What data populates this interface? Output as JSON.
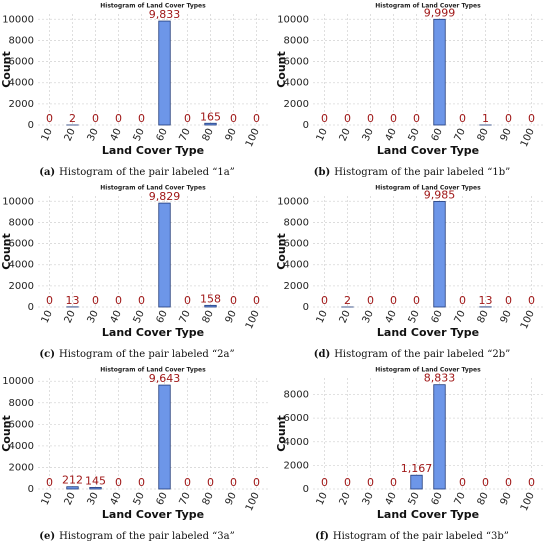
{
  "chart_data": [
    {
      "type": "bar",
      "title": "Histogram of Land Cover Types",
      "xlabel": "Land Cover Type",
      "ylabel": "Count",
      "categories": [
        "10",
        "20",
        "30",
        "40",
        "50",
        "60",
        "70",
        "80",
        "90",
        "100"
      ],
      "values": [
        0,
        2,
        0,
        0,
        0,
        9833,
        0,
        165,
        0,
        0
      ],
      "value_labels": [
        "0",
        "2",
        "0",
        "0",
        "0",
        "9,833",
        "0",
        "165",
        "0",
        "0"
      ],
      "ylim": [
        0,
        10500
      ],
      "yticks": [
        0,
        2000,
        4000,
        6000,
        8000,
        10000
      ],
      "grid": true,
      "color": "#6d96e8",
      "caption_label": "(a)",
      "caption": "Histogram of the pair labeled “1a”"
    },
    {
      "type": "bar",
      "title": "Histogram of Land Cover Types",
      "xlabel": "Land Cover Type",
      "ylabel": "Count",
      "categories": [
        "10",
        "20",
        "30",
        "40",
        "50",
        "60",
        "70",
        "80",
        "90",
        "100"
      ],
      "values": [
        0,
        0,
        0,
        0,
        0,
        9999,
        0,
        1,
        0,
        0
      ],
      "value_labels": [
        "0",
        "0",
        "0",
        "0",
        "0",
        "9,999",
        "0",
        "1",
        "0",
        "0"
      ],
      "ylim": [
        0,
        10500
      ],
      "yticks": [
        0,
        2000,
        4000,
        6000,
        8000,
        10000
      ],
      "grid": true,
      "color": "#6d96e8",
      "caption_label": "(b)",
      "caption": "Histogram of the pair labeled “1b”"
    },
    {
      "type": "bar",
      "title": "Histogram of Land Cover Types",
      "xlabel": "Land Cover Type",
      "ylabel": "Count",
      "categories": [
        "10",
        "20",
        "30",
        "40",
        "50",
        "60",
        "70",
        "80",
        "90",
        "100"
      ],
      "values": [
        0,
        13,
        0,
        0,
        0,
        9829,
        0,
        158,
        0,
        0
      ],
      "value_labels": [
        "0",
        "13",
        "0",
        "0",
        "0",
        "9,829",
        "0",
        "158",
        "0",
        "0"
      ],
      "ylim": [
        0,
        10500
      ],
      "yticks": [
        0,
        2000,
        4000,
        6000,
        8000,
        10000
      ],
      "grid": true,
      "color": "#6d96e8",
      "caption_label": "(c)",
      "caption": "Histogram of the pair labeled “2a”"
    },
    {
      "type": "bar",
      "title": "Histogram of Land Cover Types",
      "xlabel": "Land Cover Type",
      "ylabel": "Count",
      "categories": [
        "10",
        "20",
        "30",
        "40",
        "50",
        "60",
        "70",
        "80",
        "90",
        "100"
      ],
      "values": [
        0,
        2,
        0,
        0,
        0,
        9985,
        0,
        13,
        0,
        0
      ],
      "value_labels": [
        "0",
        "2",
        "0",
        "0",
        "0",
        "9,985",
        "0",
        "13",
        "0",
        "0"
      ],
      "ylim": [
        0,
        10500
      ],
      "yticks": [
        0,
        2000,
        4000,
        6000,
        8000,
        10000
      ],
      "grid": true,
      "color": "#6d96e8",
      "caption_label": "(d)",
      "caption": "Histogram of the pair labeled “2b”"
    },
    {
      "type": "bar",
      "title": "Histogram of Land Cover Types",
      "xlabel": "Land Cover Type",
      "ylabel": "Count",
      "categories": [
        "10",
        "20",
        "30",
        "40",
        "50",
        "60",
        "70",
        "80",
        "90",
        "100"
      ],
      "values": [
        0,
        212,
        145,
        0,
        0,
        9643,
        0,
        0,
        0,
        0
      ],
      "value_labels": [
        "0",
        "212",
        "145",
        "0",
        "0",
        "9,643",
        "0",
        "0",
        "0",
        "0"
      ],
      "ylim": [
        0,
        10300
      ],
      "yticks": [
        0,
        2000,
        4000,
        6000,
        8000,
        10000
      ],
      "grid": true,
      "color": "#6d96e8",
      "caption_label": "(e)",
      "caption": "Histogram of the pair labeled “3a”"
    },
    {
      "type": "bar",
      "title": "Histogram of Land Cover Types",
      "xlabel": "Land Cover Type",
      "ylabel": "Count",
      "categories": [
        "10",
        "20",
        "30",
        "40",
        "50",
        "60",
        "70",
        "80",
        "90",
        "100"
      ],
      "values": [
        0,
        0,
        0,
        0,
        1167,
        8833,
        0,
        0,
        0,
        0
      ],
      "value_labels": [
        "0",
        "0",
        "0",
        "0",
        "1,167",
        "8,833",
        "0",
        "0",
        "0",
        "0"
      ],
      "ylim": [
        0,
        9400
      ],
      "yticks": [
        0,
        2000,
        4000,
        6000,
        8000
      ],
      "grid": true,
      "color": "#6d96e8",
      "caption_label": "(f)",
      "caption": "Histogram of the pair labeled “3b”"
    }
  ]
}
